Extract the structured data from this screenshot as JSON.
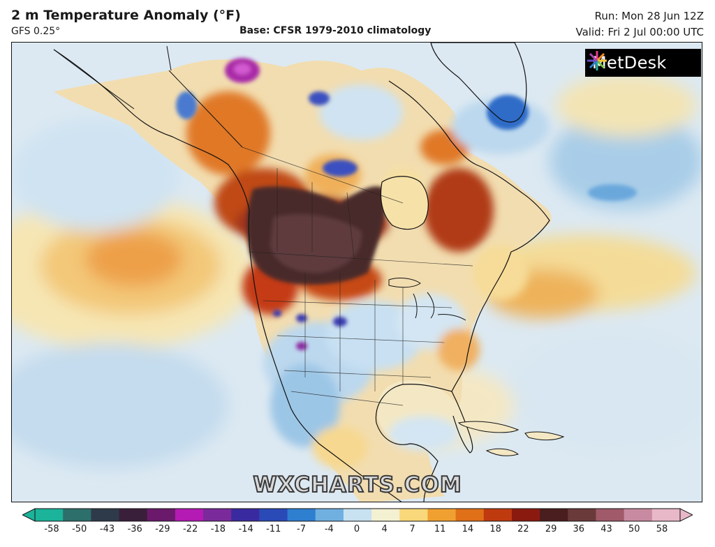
{
  "header": {
    "title": "2 m Temperature Anomaly (°F)",
    "model": "GFS 0.25°",
    "base": "Base: CFSR 1979-2010 climatology",
    "run": "Run: Mon 28 Jun 12Z",
    "valid": "Valid: Fri 2 Jul 00:00 UTC"
  },
  "logo": {
    "text": "MetDesk"
  },
  "watermark": {
    "text": "WXCHARTS.COM"
  },
  "colorbar": {
    "ticks": [
      "-58",
      "-50",
      "-43",
      "-36",
      "-29",
      "-22",
      "-18",
      "-14",
      "-11",
      "-7",
      "-4",
      "0",
      "4",
      "7",
      "11",
      "14",
      "18",
      "22",
      "29",
      "36",
      "43",
      "50",
      "58"
    ],
    "colors": [
      "#1bb39a",
      "#2d6f6a",
      "#2e3a4a",
      "#3a1f3a",
      "#6b1a6b",
      "#b41ab4",
      "#7a2a9a",
      "#3a2aa0",
      "#2a4ab8",
      "#2e7fd0",
      "#6fb0e0",
      "#c8e2f2",
      "#f4f0d2",
      "#f8d87a",
      "#f0a030",
      "#e07018",
      "#c03a10",
      "#8a1a10",
      "#4a1e1e",
      "#6a3a3a",
      "#a05a6a",
      "#c88aa0",
      "#e8b8c8"
    ]
  }
}
